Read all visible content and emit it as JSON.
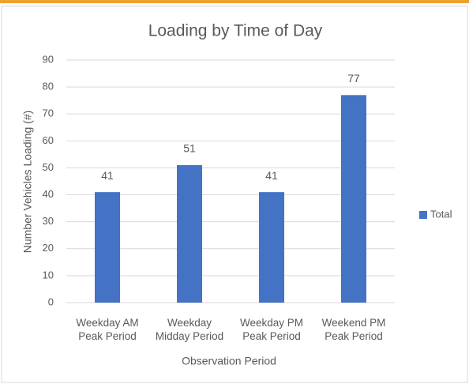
{
  "chart_data": {
    "type": "bar",
    "title": "Loading by Time of Day",
    "x_label": "Observation Period",
    "y_label": "Number  Vehicles Loading (#)",
    "categories": [
      "Weekday AM\nPeak Period",
      "Weekday\nMidday Period",
      "Weekday PM\nPeak Period",
      "Weekend PM\nPeak Period"
    ],
    "series": [
      {
        "name": "Total",
        "color": "#4472c4",
        "values": [
          41,
          51,
          41,
          77
        ]
      }
    ],
    "ylim": [
      0,
      90
    ],
    "yticks": [
      0,
      10,
      20,
      30,
      40,
      50,
      60,
      70,
      80,
      90
    ],
    "grid": true,
    "legend": "right"
  }
}
